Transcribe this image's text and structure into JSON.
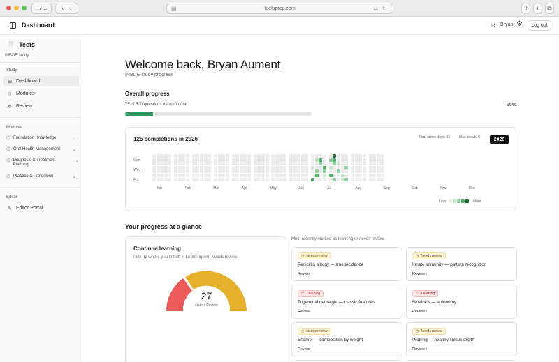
{
  "browser": {
    "url": "teefsprep.com"
  },
  "topbar": {
    "title": "Dashboard",
    "username": "Bryan",
    "logout_label": "Log out"
  },
  "sidebar": {
    "brand": "Teefs",
    "subtitle": "INBDE study",
    "study_section": "Study",
    "study_items": [
      {
        "label": "Dashboard",
        "icon": "grid-icon"
      },
      {
        "label": "Modules",
        "icon": "book-icon"
      },
      {
        "label": "Review",
        "icon": "refresh-icon"
      }
    ],
    "modules_section": "Modules",
    "modules": [
      {
        "label": "Foundation Knowledge"
      },
      {
        "label": "Oral Health Management"
      },
      {
        "label": "Diagnosis & Treatment Planning"
      },
      {
        "label": "Practice & Profession"
      }
    ],
    "editor_section": "Editor",
    "editor_items": [
      {
        "label": "Editor Portal",
        "icon": "pen-icon"
      }
    ]
  },
  "main": {
    "welcome": "Welcome back, Bryan Aument",
    "subtitle": "INBDE study progress",
    "overall_title": "Overall progress",
    "overall_count": "75 of 500 questions marked done",
    "overall_percent": "15%",
    "overall_fraction": 0.15,
    "glance_title": "Your progress at a glance",
    "recent_caption": "Most recently marked as learning or needs review."
  },
  "heatmap": {
    "title": "125 completions in 2026",
    "total_active_days": "Total active days: 16",
    "max_streak": "Max streak: 6",
    "year": "2026",
    "day_labels": [
      "Mon",
      "Wed",
      "Fri"
    ],
    "months": [
      "Jan",
      "Feb",
      "Mar",
      "Apr",
      "May",
      "Jun",
      "Jul",
      "Aug",
      "Sep",
      "Oct",
      "Nov",
      "Dec"
    ],
    "legend_less": "Less",
    "legend_more": "More",
    "colors": [
      "#ebebeb",
      "#c6e6cc",
      "#8fcf9c",
      "#4fae68",
      "#1f6e38"
    ]
  },
  "continue_learning": {
    "title": "Continue learning",
    "subtitle": "Pick up where you left off in Learning and Needs review.",
    "value": "27",
    "label": "Needs Review",
    "gauge_colors": {
      "learning": "#ec5a5a",
      "needs_review": "#e5b02a"
    }
  },
  "recent_cards": [
    {
      "status": "Needs review",
      "kind": "review",
      "title": "Penicillin allergy — true incidence",
      "action": "Review"
    },
    {
      "status": "Needs review",
      "kind": "review",
      "title": "Innate immunity — pattern recognition",
      "action": "Review"
    },
    {
      "status": "Learning",
      "kind": "learning",
      "title": "Trigeminal neuralgia — classic features",
      "action": "Review"
    },
    {
      "status": "Learning",
      "kind": "learning",
      "title": "Bioethics — autonomy",
      "action": "Review"
    },
    {
      "status": "Needs review",
      "kind": "review",
      "title": "Enamel — composition by weight",
      "action": "Review"
    },
    {
      "status": "Needs review",
      "kind": "review",
      "title": "Probing — healthy sulcus depth",
      "action": "Review"
    }
  ]
}
